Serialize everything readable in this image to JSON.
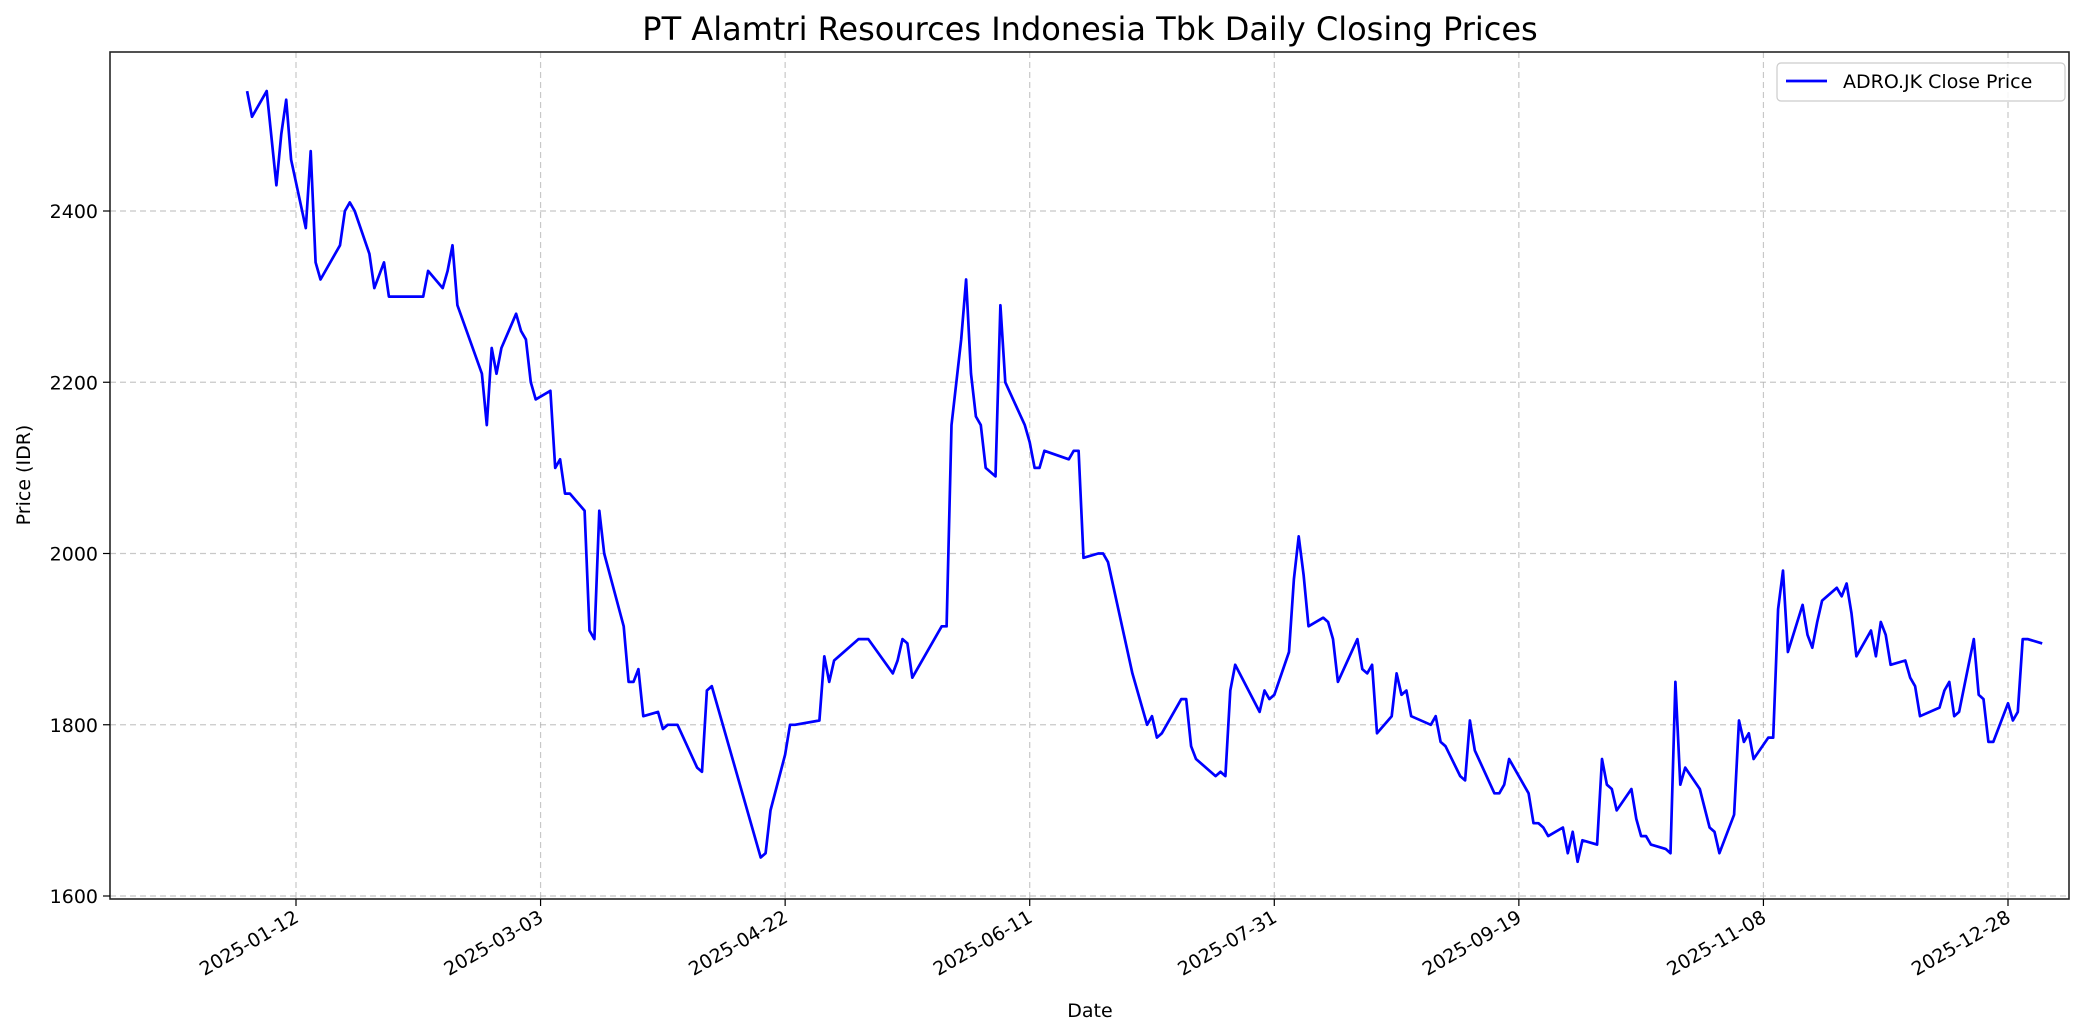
{
  "chart_data": {
    "type": "line",
    "title": "PT Alamtri Resources Indonesia Tbk Daily Closing Prices",
    "xlabel": "Date",
    "ylabel": "Price (IDR)",
    "ylim": [
      1595,
      2588
    ],
    "xlim": [
      "2024-12-16",
      "2026-01-08"
    ],
    "grid": true,
    "legend_position": "upper right",
    "y_ticks": [
      1600,
      1800,
      2000,
      2200,
      2400
    ],
    "x_ticks": [
      "2025-01-12",
      "2025-03-03",
      "2025-04-22",
      "2025-06-11",
      "2025-07-31",
      "2025-09-19",
      "2025-11-08",
      "2025-12-28"
    ],
    "series": [
      {
        "name": "ADRO.JK Close Price",
        "color": "#0000ff",
        "points": [
          [
            "2025-01-02",
            2540
          ],
          [
            "2025-01-03",
            2510
          ],
          [
            "2025-01-06",
            2540
          ],
          [
            "2025-01-08",
            2430
          ],
          [
            "2025-01-09",
            2490
          ],
          [
            "2025-01-10",
            2530
          ],
          [
            "2025-01-11",
            2460
          ],
          [
            "2025-01-14",
            2380
          ],
          [
            "2025-01-15",
            2470
          ],
          [
            "2025-01-16",
            2340
          ],
          [
            "2025-01-17",
            2320
          ],
          [
            "2025-01-21",
            2360
          ],
          [
            "2025-01-22",
            2400
          ],
          [
            "2025-01-23",
            2410
          ],
          [
            "2025-01-24",
            2400
          ],
          [
            "2025-01-27",
            2350
          ],
          [
            "2025-01-28",
            2310
          ],
          [
            "2025-01-30",
            2340
          ],
          [
            "2025-01-31",
            2300
          ],
          [
            "2025-02-07",
            2300
          ],
          [
            "2025-02-08",
            2330
          ],
          [
            "2025-02-11",
            2310
          ],
          [
            "2025-02-12",
            2330
          ],
          [
            "2025-02-13",
            2360
          ],
          [
            "2025-02-14",
            2290
          ],
          [
            "2025-02-19",
            2210
          ],
          [
            "2025-02-20",
            2150
          ],
          [
            "2025-02-21",
            2240
          ],
          [
            "2025-02-22",
            2210
          ],
          [
            "2025-02-23",
            2240
          ],
          [
            "2025-02-26",
            2280
          ],
          [
            "2025-02-27",
            2260
          ],
          [
            "2025-02-28",
            2250
          ],
          [
            "2025-03-01",
            2200
          ],
          [
            "2025-03-02",
            2180
          ],
          [
            "2025-03-05",
            2190
          ],
          [
            "2025-03-06",
            2100
          ],
          [
            "2025-03-07",
            2110
          ],
          [
            "2025-03-08",
            2070
          ],
          [
            "2025-03-09",
            2070
          ],
          [
            "2025-03-12",
            2050
          ],
          [
            "2025-03-13",
            1910
          ],
          [
            "2025-03-14",
            1900
          ],
          [
            "2025-03-15",
            2050
          ],
          [
            "2025-03-16",
            2000
          ],
          [
            "2025-03-20",
            1915
          ],
          [
            "2025-03-21",
            1850
          ],
          [
            "2025-03-22",
            1850
          ],
          [
            "2025-03-23",
            1865
          ],
          [
            "2025-03-24",
            1810
          ],
          [
            "2025-03-27",
            1815
          ],
          [
            "2025-03-28",
            1795
          ],
          [
            "2025-03-29",
            1800
          ],
          [
            "2025-03-31",
            1800
          ],
          [
            "2025-04-04",
            1750
          ],
          [
            "2025-04-05",
            1745
          ],
          [
            "2025-04-06",
            1840
          ],
          [
            "2025-04-07",
            1845
          ],
          [
            "2025-04-17",
            1645
          ],
          [
            "2025-04-18",
            1650
          ],
          [
            "2025-04-19",
            1700
          ],
          [
            "2025-04-22",
            1765
          ],
          [
            "2025-04-23",
            1800
          ],
          [
            "2025-04-24",
            1800
          ],
          [
            "2025-04-29",
            1805
          ],
          [
            "2025-04-30",
            1880
          ],
          [
            "2025-05-01",
            1850
          ],
          [
            "2025-05-02",
            1875
          ],
          [
            "2025-05-03",
            1880
          ],
          [
            "2025-05-07",
            1900
          ],
          [
            "2025-05-09",
            1900
          ],
          [
            "2025-05-14",
            1860
          ],
          [
            "2025-05-15",
            1875
          ],
          [
            "2025-05-16",
            1900
          ],
          [
            "2025-05-17",
            1895
          ],
          [
            "2025-05-18",
            1855
          ],
          [
            "2025-05-24",
            1915
          ],
          [
            "2025-05-25",
            1915
          ],
          [
            "2025-05-26",
            2150
          ],
          [
            "2025-05-28",
            2250
          ],
          [
            "2025-05-29",
            2320
          ],
          [
            "2025-05-30",
            2210
          ],
          [
            "2025-05-31",
            2160
          ],
          [
            "2025-06-01",
            2150
          ],
          [
            "2025-06-02",
            2100
          ],
          [
            "2025-06-04",
            2090
          ],
          [
            "2025-06-05",
            2290
          ],
          [
            "2025-06-06",
            2200
          ],
          [
            "2025-06-10",
            2150
          ],
          [
            "2025-06-11",
            2130
          ],
          [
            "2025-06-12",
            2100
          ],
          [
            "2025-06-13",
            2100
          ],
          [
            "2025-06-14",
            2120
          ],
          [
            "2025-06-19",
            2110
          ],
          [
            "2025-06-20",
            2120
          ],
          [
            "2025-06-21",
            2120
          ],
          [
            "2025-06-22",
            1995
          ],
          [
            "2025-06-25",
            2000
          ],
          [
            "2025-06-26",
            2000
          ],
          [
            "2025-06-27",
            1990
          ],
          [
            "2025-07-02",
            1860
          ],
          [
            "2025-07-05",
            1800
          ],
          [
            "2025-07-06",
            1810
          ],
          [
            "2025-07-07",
            1785
          ],
          [
            "2025-07-08",
            1790
          ],
          [
            "2025-07-12",
            1830
          ],
          [
            "2025-07-13",
            1830
          ],
          [
            "2025-07-14",
            1775
          ],
          [
            "2025-07-15",
            1760
          ],
          [
            "2025-07-19",
            1740
          ],
          [
            "2025-07-20",
            1745
          ],
          [
            "2025-07-21",
            1740
          ],
          [
            "2025-07-22",
            1840
          ],
          [
            "2025-07-23",
            1870
          ],
          [
            "2025-07-28",
            1815
          ],
          [
            "2025-07-29",
            1840
          ],
          [
            "2025-07-30",
            1830
          ],
          [
            "2025-07-31",
            1835
          ],
          [
            "2025-08-03",
            1885
          ],
          [
            "2025-08-04",
            1970
          ],
          [
            "2025-08-05",
            2020
          ],
          [
            "2025-08-06",
            1975
          ],
          [
            "2025-08-07",
            1915
          ],
          [
            "2025-08-10",
            1925
          ],
          [
            "2025-08-11",
            1920
          ],
          [
            "2025-08-12",
            1900
          ],
          [
            "2025-08-13",
            1850
          ],
          [
            "2025-08-17",
            1900
          ],
          [
            "2025-08-18",
            1865
          ],
          [
            "2025-08-19",
            1860
          ],
          [
            "2025-08-20",
            1870
          ],
          [
            "2025-08-21",
            1790
          ],
          [
            "2025-08-24",
            1810
          ],
          [
            "2025-08-25",
            1860
          ],
          [
            "2025-08-26",
            1835
          ],
          [
            "2025-08-27",
            1840
          ],
          [
            "2025-08-28",
            1810
          ],
          [
            "2025-09-01",
            1800
          ],
          [
            "2025-09-02",
            1810
          ],
          [
            "2025-09-03",
            1780
          ],
          [
            "2025-09-04",
            1775
          ],
          [
            "2025-09-07",
            1740
          ],
          [
            "2025-09-08",
            1735
          ],
          [
            "2025-09-09",
            1805
          ],
          [
            "2025-09-10",
            1770
          ],
          [
            "2025-09-14",
            1720
          ],
          [
            "2025-09-15",
            1720
          ],
          [
            "2025-09-16",
            1730
          ],
          [
            "2025-09-17",
            1760
          ],
          [
            "2025-09-21",
            1720
          ],
          [
            "2025-09-22",
            1685
          ],
          [
            "2025-09-23",
            1685
          ],
          [
            "2025-09-24",
            1680
          ],
          [
            "2025-09-25",
            1670
          ],
          [
            "2025-09-28",
            1680
          ],
          [
            "2025-09-29",
            1650
          ],
          [
            "2025-09-30",
            1675
          ],
          [
            "2025-10-01",
            1640
          ],
          [
            "2025-10-02",
            1665
          ],
          [
            "2025-10-05",
            1660
          ],
          [
            "2025-10-06",
            1760
          ],
          [
            "2025-10-07",
            1730
          ],
          [
            "2025-10-08",
            1725
          ],
          [
            "2025-10-09",
            1700
          ],
          [
            "2025-10-12",
            1725
          ],
          [
            "2025-10-13",
            1690
          ],
          [
            "2025-10-14",
            1670
          ],
          [
            "2025-10-15",
            1670
          ],
          [
            "2025-10-16",
            1660
          ],
          [
            "2025-10-19",
            1655
          ],
          [
            "2025-10-20",
            1650
          ],
          [
            "2025-10-21",
            1850
          ],
          [
            "2025-10-22",
            1730
          ],
          [
            "2025-10-23",
            1750
          ],
          [
            "2025-10-26",
            1725
          ],
          [
            "2025-10-28",
            1680
          ],
          [
            "2025-10-29",
            1675
          ],
          [
            "2025-10-30",
            1650
          ],
          [
            "2025-11-02",
            1695
          ],
          [
            "2025-11-03",
            1805
          ],
          [
            "2025-11-04",
            1780
          ],
          [
            "2025-11-05",
            1790
          ],
          [
            "2025-11-06",
            1760
          ],
          [
            "2025-11-09",
            1785
          ],
          [
            "2025-11-10",
            1785
          ],
          [
            "2025-11-11",
            1935
          ],
          [
            "2025-11-12",
            1980
          ],
          [
            "2025-11-13",
            1885
          ],
          [
            "2025-11-16",
            1940
          ],
          [
            "2025-11-17",
            1905
          ],
          [
            "2025-11-18",
            1890
          ],
          [
            "2025-11-19",
            1920
          ],
          [
            "2025-11-20",
            1945
          ],
          [
            "2025-11-23",
            1960
          ],
          [
            "2025-11-24",
            1950
          ],
          [
            "2025-11-25",
            1965
          ],
          [
            "2025-11-26",
            1930
          ],
          [
            "2025-11-27",
            1880
          ],
          [
            "2025-11-30",
            1910
          ],
          [
            "2025-12-01",
            1880
          ],
          [
            "2025-12-02",
            1920
          ],
          [
            "2025-12-03",
            1905
          ],
          [
            "2025-12-04",
            1870
          ],
          [
            "2025-12-07",
            1875
          ],
          [
            "2025-12-08",
            1855
          ],
          [
            "2025-12-09",
            1845
          ],
          [
            "2025-12-10",
            1810
          ],
          [
            "2025-12-14",
            1820
          ],
          [
            "2025-12-15",
            1840
          ],
          [
            "2025-12-16",
            1850
          ],
          [
            "2025-12-17",
            1810
          ],
          [
            "2025-12-18",
            1815
          ],
          [
            "2025-12-21",
            1900
          ],
          [
            "2025-12-22",
            1835
          ],
          [
            "2025-12-23",
            1830
          ],
          [
            "2025-12-24",
            1780
          ],
          [
            "2025-12-25",
            1780
          ],
          [
            "2025-12-28",
            1825
          ],
          [
            "2025-12-29",
            1805
          ],
          [
            "2025-12-30",
            1815
          ],
          [
            "2025-12-31",
            1900
          ],
          [
            "2026-01-01",
            1900
          ],
          [
            "2026-01-04",
            1895
          ]
        ]
      }
    ]
  },
  "legend": {
    "label": "ADRO.JK Close Price"
  }
}
